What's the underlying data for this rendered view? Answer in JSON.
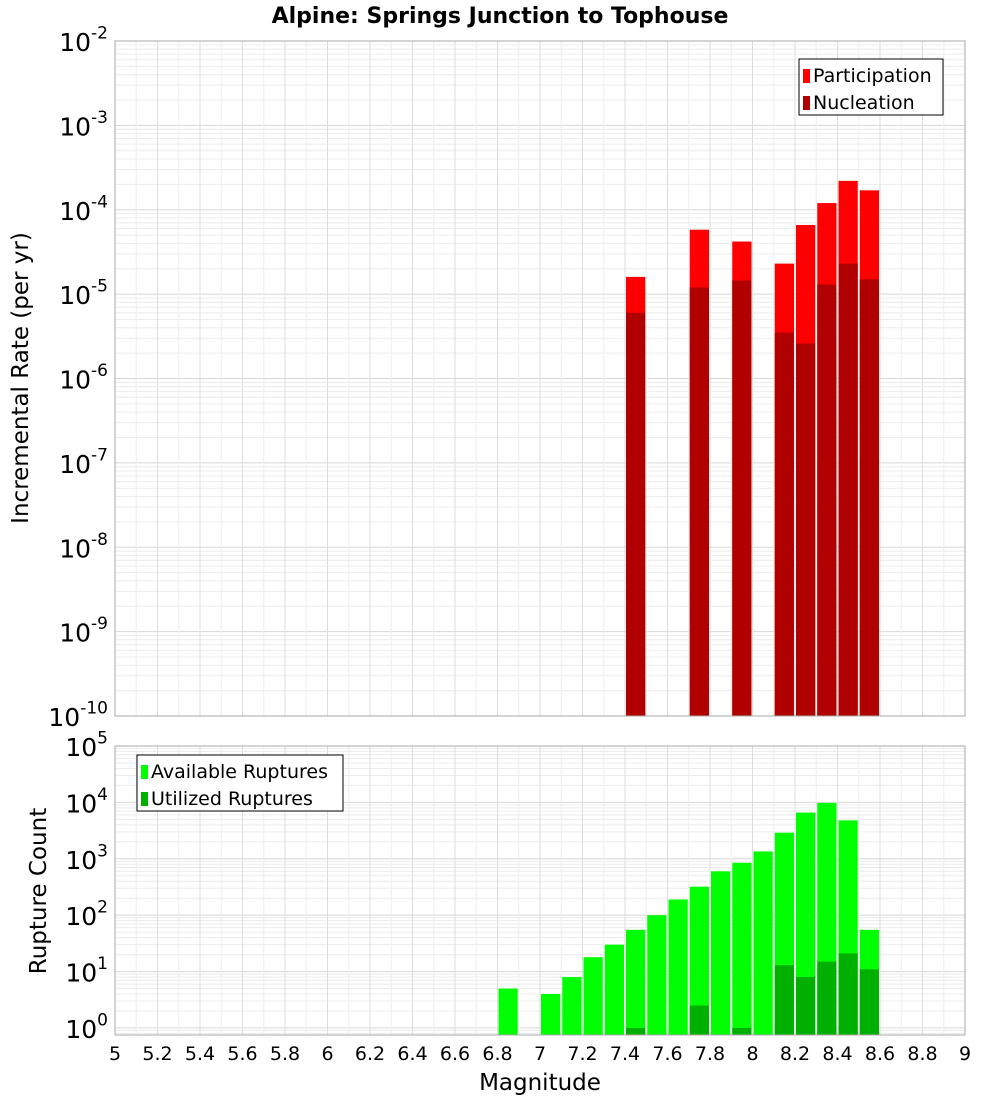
{
  "chart_data": [
    {
      "type": "bar",
      "title": "Alpine: Springs Junction to Tophouse",
      "xlabel": "",
      "ylabel": "Incremental Rate (per yr)",
      "yscale": "log",
      "xlim": [
        5,
        9
      ],
      "ylim": [
        1e-10,
        0.01
      ],
      "grid": true,
      "legend_position": "top-right",
      "bar_width": 0.1,
      "y_ticks": [
        {
          "base": "10",
          "exp": "-10"
        },
        {
          "base": "10",
          "exp": "-9"
        },
        {
          "base": "10",
          "exp": "-8"
        },
        {
          "base": "10",
          "exp": "-7"
        },
        {
          "base": "10",
          "exp": "-6"
        },
        {
          "base": "10",
          "exp": "-5"
        },
        {
          "base": "10",
          "exp": "-4"
        },
        {
          "base": "10",
          "exp": "-3"
        },
        {
          "base": "10",
          "exp": "-2"
        }
      ],
      "series": [
        {
          "name": "Participation",
          "color": "#ff0000",
          "x": [
            7.45,
            7.75,
            7.95,
            8.15,
            8.25,
            8.35,
            8.45,
            8.55
          ],
          "values": [
            1.6e-05,
            5.8e-05,
            4.2e-05,
            2.3e-05,
            6.6e-05,
            0.00012,
            0.00022,
            0.00017
          ]
        },
        {
          "name": "Nucleation",
          "color": "#b00000",
          "x": [
            7.45,
            7.75,
            7.95,
            8.15,
            8.25,
            8.35,
            8.45,
            8.55
          ],
          "values": [
            6e-06,
            1.2e-05,
            1.45e-05,
            3.5e-06,
            2.6e-06,
            1.3e-05,
            2.3e-05,
            1.5e-05
          ]
        }
      ]
    },
    {
      "type": "bar",
      "title": "",
      "xlabel": "Magnitude",
      "ylabel": "Rupture Count",
      "yscale": "log",
      "xlim": [
        5,
        9
      ],
      "ylim": [
        0.75,
        100000.0
      ],
      "grid": true,
      "legend_position": "top-left",
      "bar_width": 0.1,
      "x_ticks": [
        "5",
        "5.2",
        "5.4",
        "5.6",
        "5.8",
        "6",
        "6.2",
        "6.4",
        "6.6",
        "6.8",
        "7",
        "7.2",
        "7.4",
        "7.6",
        "7.8",
        "8",
        "8.2",
        "8.4",
        "8.6",
        "8.8",
        "9"
      ],
      "y_ticks": [
        {
          "base": "10",
          "exp": "0"
        },
        {
          "base": "10",
          "exp": "1"
        },
        {
          "base": "10",
          "exp": "2"
        },
        {
          "base": "10",
          "exp": "3"
        },
        {
          "base": "10",
          "exp": "4"
        },
        {
          "base": "10",
          "exp": "5"
        }
      ],
      "series": [
        {
          "name": "Available Ruptures",
          "color": "#00ff00",
          "x": [
            6.85,
            7.05,
            7.15,
            7.25,
            7.35,
            7.45,
            7.55,
            7.65,
            7.75,
            7.85,
            7.95,
            8.05,
            8.15,
            8.25,
            8.35,
            8.45,
            8.55
          ],
          "values": [
            5,
            4,
            8,
            18,
            30,
            55,
            100,
            190,
            320,
            600,
            850,
            1350,
            2900,
            6600,
            9800,
            4800,
            55
          ]
        },
        {
          "name": "Utilized Ruptures",
          "color": "#00b000",
          "x": [
            7.45,
            7.75,
            7.95,
            8.15,
            8.25,
            8.35,
            8.45,
            8.55
          ],
          "values": [
            1,
            2.5,
            1,
            13,
            8,
            15,
            21,
            11
          ]
        }
      ]
    }
  ]
}
